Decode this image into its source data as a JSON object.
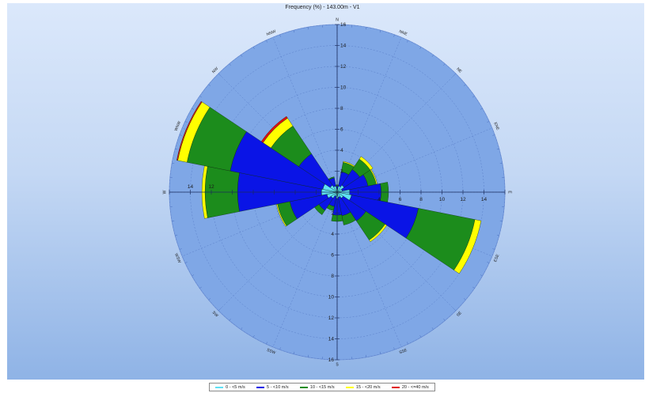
{
  "chart_data": {
    "type": "polar-bar",
    "title": "Frequency (%) - 143.00m - V1",
    "directions": [
      "N",
      "NNE",
      "NE",
      "ENE",
      "E",
      "ESE",
      "SE",
      "SSE",
      "S",
      "SSW",
      "SW",
      "WSW",
      "W",
      "WNW",
      "NW",
      "NNW"
    ],
    "radial_axis": {
      "range": [
        0,
        16
      ],
      "ticks": [
        2,
        4,
        6,
        8,
        10,
        12,
        14,
        16
      ]
    },
    "side_tick_labels": {
      "west": [
        "14",
        "12"
      ],
      "east": [
        "4",
        "6",
        "8",
        "10",
        "12",
        "14"
      ]
    },
    "colors": {
      "background_disc": "#7fa7e6",
      "grid": "#5a7fc9",
      "s1": "#5fe0f5",
      "s2": "#0a14e6",
      "s3": "#1c8c1c",
      "s4": "#ffff00",
      "s5": "#e01010"
    },
    "series": [
      {
        "name": "0 - <5 m/s",
        "color": "#5fe0f5",
        "values": [
          0.3,
          0.6,
          0.8,
          0.5,
          1.2,
          1.4,
          0.7,
          0.5,
          0.6,
          0.4,
          0.7,
          1.0,
          1.5,
          1.4,
          0.8,
          0.6
        ]
      },
      {
        "name": "5 - <10 m/s",
        "color": "#0a14e6",
        "values": [
          0.3,
          1.4,
          1.8,
          2.5,
          3.0,
          6.5,
          2.6,
          1.8,
          1.6,
          1.0,
          1.4,
          3.6,
          8.0,
          9.0,
          3.6,
          0.8
        ]
      },
      {
        "name": "10 - <15 m/s",
        "color": "#1c8c1c",
        "values": [
          0.1,
          0.9,
          1.2,
          0.8,
          0.7,
          5.5,
          2.2,
          0.9,
          0.6,
          0.4,
          0.5,
          1.2,
          3.1,
          4.2,
          3.2,
          0.1
        ]
      },
      {
        "name": "15 - <20 m/s",
        "color": "#ffff00",
        "values": [
          0.0,
          0.1,
          0.3,
          0.1,
          0.0,
          0.6,
          0.2,
          0.0,
          0.0,
          0.0,
          0.0,
          0.1,
          0.3,
          0.9,
          0.9,
          0.0
        ]
      },
      {
        "name": "20 - <=40 m/s",
        "color": "#e01010",
        "values": [
          0.0,
          0.0,
          0.0,
          0.0,
          0.0,
          0.0,
          0.0,
          0.0,
          0.0,
          0.0,
          0.0,
          0.0,
          0.0,
          0.1,
          0.2,
          0.0
        ]
      }
    ]
  }
}
